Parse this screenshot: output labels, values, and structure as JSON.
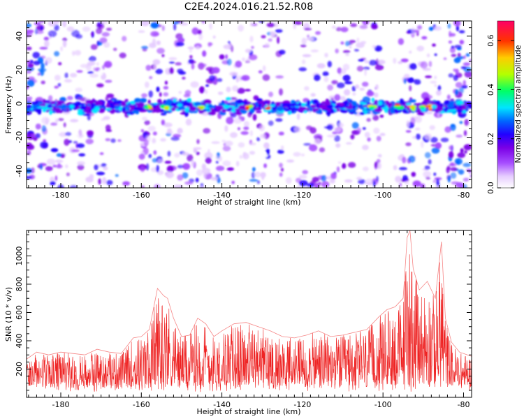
{
  "title": "C2E4.2024.016.21.52.R08",
  "colors": {
    "snr_line": "#ee2222",
    "colormap": [
      "#ffffff",
      "#e6ccff",
      "#a64dff",
      "#7a00e6",
      "#2200ff",
      "#0066ff",
      "#00e5ff",
      "#00ff66",
      "#b3ff00",
      "#ffcc00",
      "#ff3300",
      "#ff0066"
    ]
  },
  "chart_data": [
    {
      "type": "heatmap",
      "xlabel": "Height of straight line (km)",
      "ylabel": "Frequency (Hz)",
      "xlim": [
        -188.5,
        -78
      ],
      "ylim": [
        -50,
        49
      ],
      "x_ticks": [
        -180,
        -160,
        -140,
        -120,
        -100,
        -80
      ],
      "y_ticks": [
        -40,
        -20,
        0,
        20,
        40
      ],
      "colorbar": {
        "label": "Normalized spectral amplitude",
        "range": [
          0,
          0.68
        ],
        "ticks": [
          0,
          0.2,
          0.4,
          0.6
        ],
        "tick_labels": [
          "0.0",
          "0.2",
          "0.4",
          "0.6"
        ]
      },
      "band": {
        "center_hz": -2,
        "half_width_hz": 6
      },
      "hotspots_km": [
        -158,
        -154,
        -145,
        -133,
        -128,
        -103,
        -96,
        -93,
        -90,
        -88
      ],
      "noise_free_gaps_km": [
        [
          -168,
          -160
        ],
        [
          -125,
          -120
        ],
        [
          -100,
          -96
        ],
        [
          -86,
          -84
        ]
      ]
    },
    {
      "type": "line",
      "xlabel": "Height of straight line (km)",
      "ylabel": "SNR (10 * v/v)",
      "xlim": [
        -188.5,
        -78
      ],
      "ylim": [
        0,
        1180
      ],
      "x_ticks": [
        -180,
        -160,
        -140,
        -120,
        -100,
        -80
      ],
      "y_ticks": [
        200,
        400,
        600,
        800,
        1000
      ],
      "series": [
        {
          "x": [
            -188.5,
            -186,
            -183,
            -180,
            -177,
            -174,
            -171,
            -168,
            -165,
            -162,
            -160,
            -158,
            -156,
            -154.5,
            -153.5,
            -152,
            -150,
            -148,
            -146,
            -144,
            -142,
            -140,
            -137,
            -134,
            -131,
            -128,
            -125,
            -122,
            -119,
            -116,
            -113,
            -110,
            -107,
            -104,
            -101,
            -99,
            -97,
            -95,
            -94,
            -93.3,
            -92.5,
            -91,
            -89,
            -87,
            -85.5,
            -84.5,
            -83,
            -81,
            -79,
            -78
          ],
          "values": [
            270,
            320,
            300,
            320,
            310,
            300,
            340,
            320,
            310,
            420,
            430,
            480,
            770,
            720,
            700,
            560,
            430,
            440,
            560,
            520,
            430,
            470,
            520,
            530,
            500,
            470,
            430,
            420,
            440,
            470,
            430,
            440,
            460,
            480,
            570,
            620,
            640,
            700,
            1130,
            1180,
            910,
            760,
            820,
            700,
            1100,
            560,
            390,
            320,
            300,
            290
          ]
        }
      ]
    }
  ]
}
